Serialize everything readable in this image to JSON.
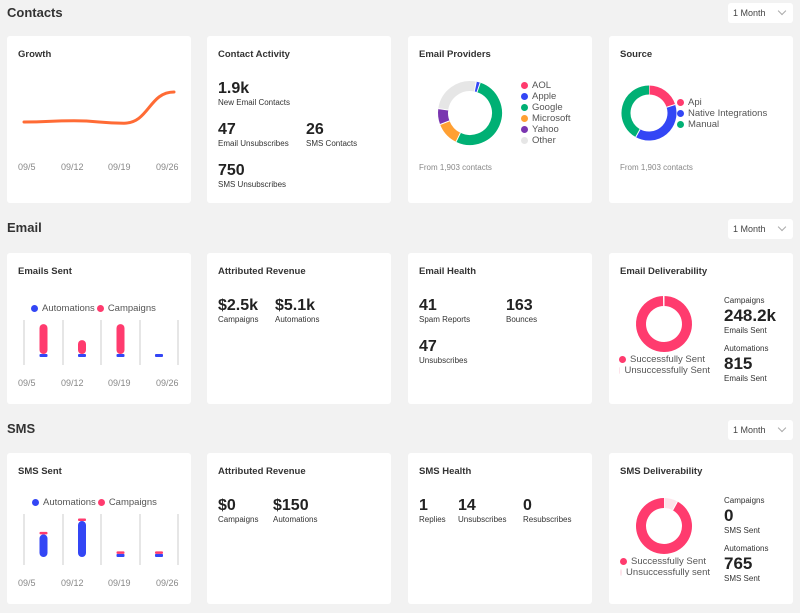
{
  "period_label": "1 Month",
  "sections": {
    "contacts": "Contacts",
    "email": "Email",
    "sms": "SMS"
  },
  "growth": {
    "title": "Growth",
    "x_labels": [
      "09/5",
      "09/12",
      "09/19",
      "09/26"
    ],
    "color": "#ff6b35"
  },
  "contact_activity": {
    "title": "Contact Activity",
    "stats": [
      {
        "value": "1.9k",
        "label": "New Email Contacts"
      },
      {
        "value": "47",
        "label": "Email Unsubscribes"
      },
      {
        "value": "26",
        "label": "SMS Contacts"
      },
      {
        "value": "750",
        "label": "SMS Unsubscribes"
      }
    ]
  },
  "email_providers": {
    "title": "Email Providers",
    "footnote": "From 1,903 contacts",
    "legend": [
      {
        "label": "AOL",
        "color": "#ff3b6e"
      },
      {
        "label": "Apple",
        "color": "#3346f5"
      },
      {
        "label": "Google",
        "color": "#00b074"
      },
      {
        "label": "Microsoft",
        "color": "#ffa033"
      },
      {
        "label": "Yahoo",
        "color": "#7a35b0"
      },
      {
        "label": "Other",
        "color": "#e6e6e6"
      }
    ]
  },
  "source": {
    "title": "Source",
    "footnote": "From 1,903 contacts",
    "legend": [
      {
        "label": "Api",
        "color": "#ff3b6e"
      },
      {
        "label": "Native Integrations",
        "color": "#3346f5"
      },
      {
        "label": "Manual",
        "color": "#00b074"
      }
    ]
  },
  "emails_sent": {
    "title": "Emails Sent",
    "legend": [
      {
        "label": "Automations",
        "color": "#3346f5"
      },
      {
        "label": "Campaigns",
        "color": "#ff3b6e"
      }
    ],
    "x_labels": [
      "09/5",
      "09/12",
      "09/19",
      "09/26"
    ]
  },
  "email_revenue": {
    "title": "Attributed Revenue",
    "stats": [
      {
        "value": "$2.5k",
        "label": "Campaigns"
      },
      {
        "value": "$5.1k",
        "label": "Automations"
      }
    ]
  },
  "email_health": {
    "title": "Email Health",
    "stats": [
      {
        "value": "41",
        "label": "Spam Reports"
      },
      {
        "value": "163",
        "label": "Bounces"
      },
      {
        "value": "47",
        "label": "Unsubscribes"
      }
    ]
  },
  "email_deliverability": {
    "title": "Email Deliverability",
    "legend": [
      {
        "label": "Successfully Sent",
        "color": "#ff3b6e"
      },
      {
        "label": "Unsuccessfully Sent",
        "color": "#fde3ea"
      }
    ],
    "campaigns_label": "Campaigns",
    "campaigns_value": "248.2k",
    "campaigns_sub": "Emails Sent",
    "automations_label": "Automations",
    "automations_value": "815",
    "automations_sub": "Emails Sent"
  },
  "sms_sent": {
    "title": "SMS Sent",
    "legend": [
      {
        "label": "Automations",
        "color": "#3346f5"
      },
      {
        "label": "Campaigns",
        "color": "#ff3b6e"
      }
    ],
    "x_labels": [
      "09/5",
      "09/12",
      "09/19",
      "09/26"
    ]
  },
  "sms_revenue": {
    "title": "Attributed Revenue",
    "stats": [
      {
        "value": "$0",
        "label": "Campaigns"
      },
      {
        "value": "$150",
        "label": "Automations"
      }
    ]
  },
  "sms_health": {
    "title": "SMS Health",
    "stats": [
      {
        "value": "1",
        "label": "Replies"
      },
      {
        "value": "14",
        "label": "Unsubscribes"
      },
      {
        "value": "0",
        "label": "Resubscribes"
      }
    ]
  },
  "sms_deliverability": {
    "title": "SMS Deliverability",
    "legend": [
      {
        "label": "Successfully Sent",
        "color": "#ff3b6e"
      },
      {
        "label": "Unsuccessfully sent",
        "color": "#fde3ea"
      }
    ],
    "campaigns_label": "Campaigns",
    "campaigns_value": "0",
    "campaigns_sub": "SMS Sent",
    "automations_label": "Automations",
    "automations_value": "765",
    "automations_sub": "SMS Sent"
  },
  "chart_data": [
    {
      "type": "line",
      "title": "Growth",
      "x": [
        "09/5",
        "09/12",
        "09/19",
        "09/26"
      ],
      "series": [
        {
          "name": "Contacts",
          "values": [
            40,
            42,
            38,
            90
          ]
        }
      ],
      "ylim": [
        0,
        100
      ]
    },
    {
      "type": "pie",
      "title": "Email Providers",
      "categories": [
        "AOL",
        "Apple",
        "Google",
        "Microsoft",
        "Yahoo",
        "Other"
      ],
      "values": [
        0.3,
        2,
        52,
        12,
        8,
        25.7
      ]
    },
    {
      "type": "pie",
      "title": "Source",
      "categories": [
        "Api",
        "Native Integrations",
        "Manual"
      ],
      "values": [
        20,
        38,
        42
      ]
    },
    {
      "type": "bar",
      "title": "Emails Sent",
      "categories": [
        "09/5",
        "09/12",
        "09/19",
        "09/26"
      ],
      "series": [
        {
          "name": "Automations",
          "values": [
            2,
            2,
            2,
            2
          ]
        },
        {
          "name": "Campaigns",
          "values": [
            28,
            13,
            28,
            0
          ]
        }
      ]
    },
    {
      "type": "pie",
      "title": "Email Deliverability",
      "categories": [
        "Successfully Sent",
        "Unsuccessfully Sent"
      ],
      "values": [
        99.7,
        0.3
      ]
    },
    {
      "type": "bar",
      "title": "SMS Sent",
      "categories": [
        "09/5",
        "09/12",
        "09/19",
        "09/26"
      ],
      "series": [
        {
          "name": "Automations",
          "values": [
            22,
            35,
            3,
            3
          ]
        },
        {
          "name": "Campaigns",
          "values": [
            2,
            2,
            2,
            1
          ]
        }
      ]
    },
    {
      "type": "pie",
      "title": "SMS Deliverability",
      "categories": [
        "Successfully Sent",
        "Unsuccessfully sent"
      ],
      "values": [
        92,
        8
      ]
    }
  ]
}
